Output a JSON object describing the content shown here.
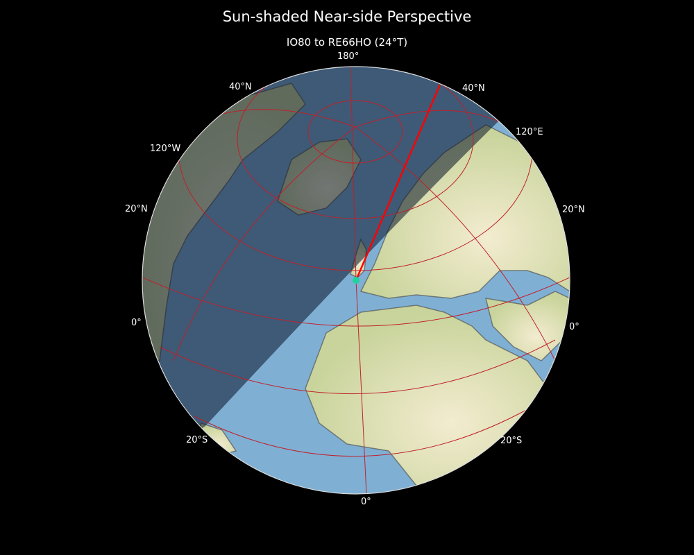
{
  "title": "Sun-shaded Near-side Perspective",
  "subtitle": "IO80 to RE66HO (24°T)",
  "labels": {
    "top_meridian": "180°",
    "lat40n_left": "40°N",
    "lat40n_right": "40°N",
    "lon120w": "120°W",
    "lon120e": "120°E",
    "lat20n_left": "20°N",
    "lat20n_right": "20°N",
    "eq_left": "0°",
    "eq_right": "0°",
    "lat20s_left": "20°S",
    "lat20s_right": "20°S",
    "bottom_meridian": "0°"
  },
  "path": {
    "from": "IO80",
    "to": "RE66HO",
    "bearing": "24°T"
  },
  "colors": {
    "ocean": "#7fb0d4",
    "land": "#e6e2b8",
    "graticule": "#c0202a",
    "path": "#ff0000",
    "marker": "#1ed3a0",
    "night_shade": "rgba(10,20,40,0.55)"
  }
}
